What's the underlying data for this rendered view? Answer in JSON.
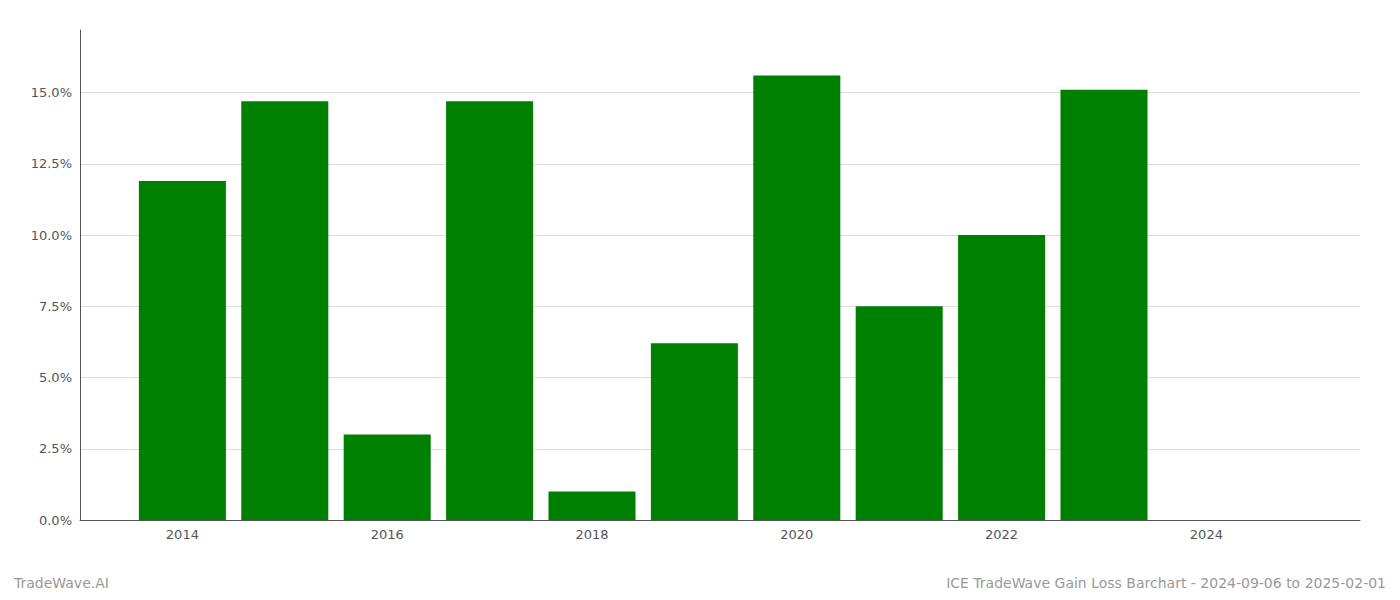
{
  "chart_data": {
    "type": "bar",
    "x": [
      2014,
      2015,
      2016,
      2017,
      2018,
      2019,
      2020,
      2021,
      2022,
      2023
    ],
    "values": [
      0.119,
      0.147,
      0.03,
      0.147,
      0.01,
      0.062,
      0.156,
      0.075,
      0.1,
      0.151
    ],
    "color": "#008000",
    "xlim": [
      2013.0,
      2025.5
    ],
    "xticks": [
      2014,
      2016,
      2018,
      2020,
      2022,
      2024
    ],
    "ylim": [
      0.0,
      0.172
    ],
    "yticks": [
      {
        "value": 0.0,
        "label": "0.0%"
      },
      {
        "value": 0.025,
        "label": "2.5%"
      },
      {
        "value": 0.05,
        "label": "5.0%"
      },
      {
        "value": 0.075,
        "label": "7.5%"
      },
      {
        "value": 0.1,
        "label": "10.0%"
      },
      {
        "value": 0.125,
        "label": "12.5%"
      },
      {
        "value": 0.15,
        "label": "15.0%"
      }
    ],
    "grid": true,
    "annotations": [
      "TradeWave.AI",
      "ICE TradeWave Gain Loss Barchart - 2024-09-06 to 2025-02-01"
    ]
  }
}
